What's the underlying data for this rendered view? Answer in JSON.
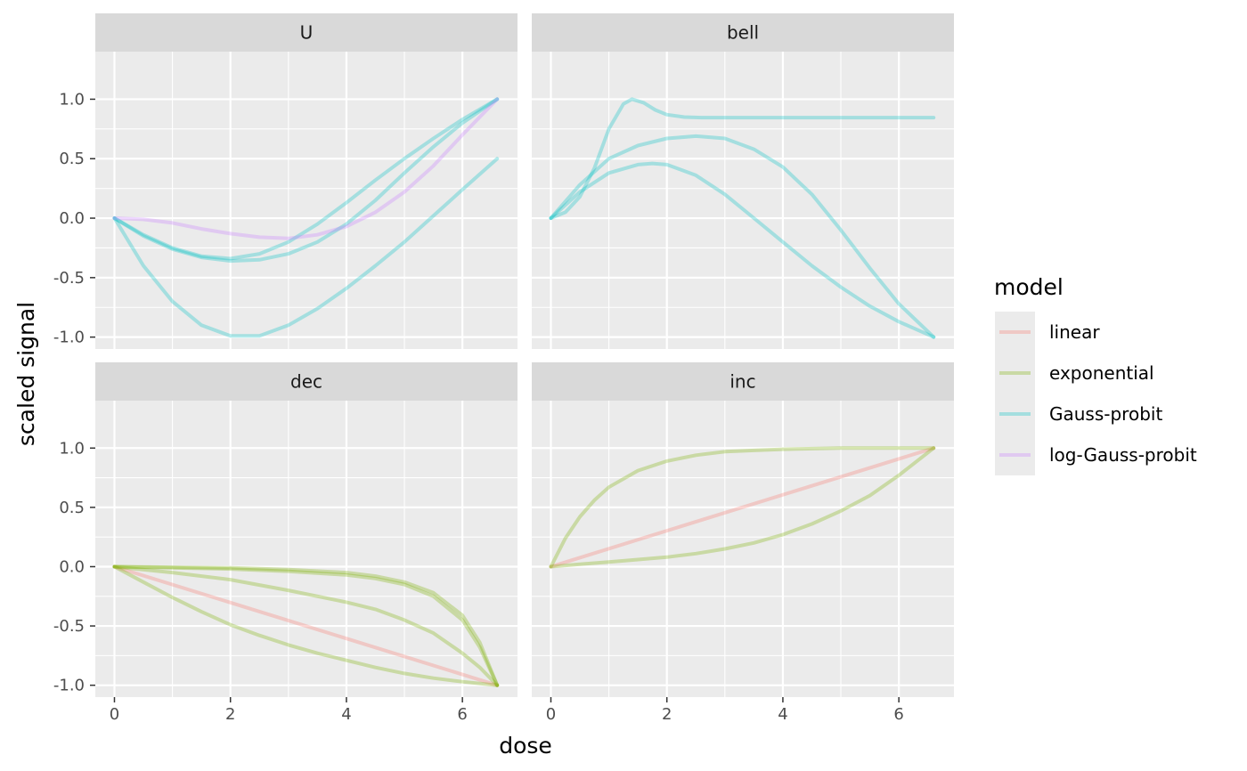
{
  "chart_data": {
    "type": "line",
    "xlabel": "dose",
    "ylabel": "scaled signal",
    "xlim": [
      -0.33,
      6.95
    ],
    "ylim": [
      -1.1,
      1.4
    ],
    "x_ticks": [
      0,
      2,
      4,
      6
    ],
    "y_ticks": [
      -1.0,
      -0.5,
      0.0,
      0.5,
      1.0
    ],
    "x_tick_labels": [
      "0",
      "2",
      "4",
      "6"
    ],
    "y_tick_labels": [
      "-1.0",
      "-0.5",
      "0.0",
      "0.5",
      "1.0"
    ],
    "grid": true,
    "legend": {
      "title": "model",
      "placement": "right",
      "entries": [
        {
          "name": "linear",
          "color": "#F8766D"
        },
        {
          "name": "exponential",
          "color": "#7CAE00"
        },
        {
          "name": "Gauss-probit",
          "color": "#00BFC4"
        },
        {
          "name": "log-Gauss-probit",
          "color": "#C77CFF"
        }
      ]
    },
    "line_opacity": 0.3,
    "panels": [
      {
        "label": "U",
        "series": [
          {
            "model": "Gauss-probit",
            "x": [
              0,
              0.5,
              1,
              1.5,
              2,
              2.5,
              3,
              3.5,
              4,
              4.5,
              5,
              5.5,
              6,
              6.6
            ],
            "y": [
              0,
              -0.14,
              -0.25,
              -0.32,
              -0.34,
              -0.3,
              -0.2,
              -0.05,
              0.13,
              0.32,
              0.5,
              0.67,
              0.83,
              1.0
            ]
          },
          {
            "model": "Gauss-probit",
            "x": [
              0,
              0.5,
              1,
              1.5,
              2,
              2.5,
              3,
              3.5,
              4,
              4.5,
              5,
              5.5,
              6,
              6.6
            ],
            "y": [
              0,
              -0.15,
              -0.26,
              -0.33,
              -0.36,
              -0.35,
              -0.3,
              -0.2,
              -0.05,
              0.15,
              0.38,
              0.6,
              0.8,
              1.0
            ]
          },
          {
            "model": "Gauss-probit",
            "x": [
              0,
              0.5,
              1,
              1.5,
              2,
              2.5,
              3,
              3.5,
              4,
              4.5,
              5,
              5.5,
              6,
              6.6
            ],
            "y": [
              0,
              -0.4,
              -0.7,
              -0.9,
              -0.99,
              -0.99,
              -0.9,
              -0.76,
              -0.59,
              -0.4,
              -0.2,
              0.02,
              0.24,
              0.5
            ]
          },
          {
            "model": "log-Gauss-probit",
            "x": [
              0,
              0.5,
              1,
              1.5,
              2,
              2.5,
              3,
              3.5,
              4,
              4.5,
              5,
              5.5,
              6,
              6.6
            ],
            "y": [
              0,
              -0.01,
              -0.04,
              -0.09,
              -0.13,
              -0.16,
              -0.17,
              -0.14,
              -0.07,
              0.05,
              0.22,
              0.44,
              0.7,
              1.0
            ]
          }
        ]
      },
      {
        "label": "bell",
        "series": [
          {
            "model": "Gauss-probit",
            "x": [
              0,
              0.25,
              0.5,
              0.75,
              1,
              1.25,
              1.4,
              1.6,
              1.8,
              2,
              2.3,
              2.6,
              3,
              4,
              5,
              6,
              6.6
            ],
            "y": [
              0,
              0.05,
              0.18,
              0.42,
              0.75,
              0.96,
              1.0,
              0.97,
              0.91,
              0.87,
              0.85,
              0.845,
              0.845,
              0.845,
              0.845,
              0.845,
              0.845
            ]
          },
          {
            "model": "Gauss-probit",
            "x": [
              0,
              0.5,
              1,
              1.5,
              2,
              2.5,
              3,
              3.5,
              4,
              4.5,
              5,
              5.5,
              6,
              6.6
            ],
            "y": [
              0,
              0.28,
              0.5,
              0.61,
              0.67,
              0.69,
              0.67,
              0.58,
              0.43,
              0.2,
              -0.1,
              -0.42,
              -0.72,
              -1.0
            ]
          },
          {
            "model": "Gauss-probit",
            "x": [
              0,
              0.5,
              1,
              1.5,
              1.75,
              2,
              2.5,
              3,
              3.5,
              4,
              4.5,
              5,
              5.5,
              6,
              6.6
            ],
            "y": [
              0,
              0.22,
              0.38,
              0.45,
              0.46,
              0.45,
              0.36,
              0.2,
              0.0,
              -0.2,
              -0.4,
              -0.58,
              -0.74,
              -0.87,
              -1.0
            ]
          }
        ]
      },
      {
        "label": "dec",
        "series": [
          {
            "model": "linear",
            "x": [
              0,
              6.6
            ],
            "y": [
              0,
              -1.0
            ]
          },
          {
            "model": "exponential",
            "x": [
              0,
              0.5,
              1,
              1.5,
              2,
              2.5,
              3,
              3.5,
              4,
              4.5,
              5,
              5.5,
              6,
              6.6
            ],
            "y": [
              0,
              -0.13,
              -0.26,
              -0.38,
              -0.49,
              -0.58,
              -0.66,
              -0.73,
              -0.79,
              -0.85,
              -0.9,
              -0.94,
              -0.97,
              -1.0
            ]
          },
          {
            "model": "exponential",
            "x": [
              0,
              1,
              2,
              3,
              4,
              4.5,
              5,
              5.5,
              6,
              6.3,
              6.6
            ],
            "y": [
              0,
              -0.05,
              -0.11,
              -0.2,
              -0.3,
              -0.36,
              -0.45,
              -0.56,
              -0.73,
              -0.85,
              -1.0
            ]
          },
          {
            "model": "exponential",
            "x": [
              0,
              1,
              2,
              3,
              4,
              4.5,
              5,
              5.5,
              6,
              6.3,
              6.6
            ],
            "y": [
              0,
              -0.01,
              -0.02,
              -0.04,
              -0.07,
              -0.1,
              -0.15,
              -0.25,
              -0.45,
              -0.68,
              -1.0
            ]
          },
          {
            "model": "exponential",
            "x": [
              0,
              1,
              2,
              3,
              4,
              4.5,
              5,
              5.5,
              6,
              6.3,
              6.6
            ],
            "y": [
              0,
              -0.005,
              -0.01,
              -0.025,
              -0.05,
              -0.08,
              -0.13,
              -0.22,
              -0.41,
              -0.64,
              -1.0
            ]
          }
        ]
      },
      {
        "label": "inc",
        "series": [
          {
            "model": "linear",
            "x": [
              0,
              6.6
            ],
            "y": [
              0,
              1.0
            ]
          },
          {
            "model": "exponential",
            "x": [
              0,
              0.25,
              0.5,
              0.75,
              1,
              1.5,
              2,
              2.5,
              3,
              3.5,
              4,
              5,
              6,
              6.6
            ],
            "y": [
              0,
              0.24,
              0.42,
              0.56,
              0.67,
              0.81,
              0.89,
              0.94,
              0.97,
              0.98,
              0.99,
              1.0,
              1.0,
              1.0
            ]
          },
          {
            "model": "exponential",
            "x": [
              0,
              0.5,
              1,
              1.5,
              2,
              2.5,
              3,
              3.5,
              4,
              4.5,
              5,
              5.5,
              6,
              6.6
            ],
            "y": [
              0,
              0.02,
              0.04,
              0.06,
              0.08,
              0.11,
              0.15,
              0.2,
              0.27,
              0.36,
              0.47,
              0.6,
              0.77,
              1.0
            ]
          }
        ]
      }
    ]
  }
}
